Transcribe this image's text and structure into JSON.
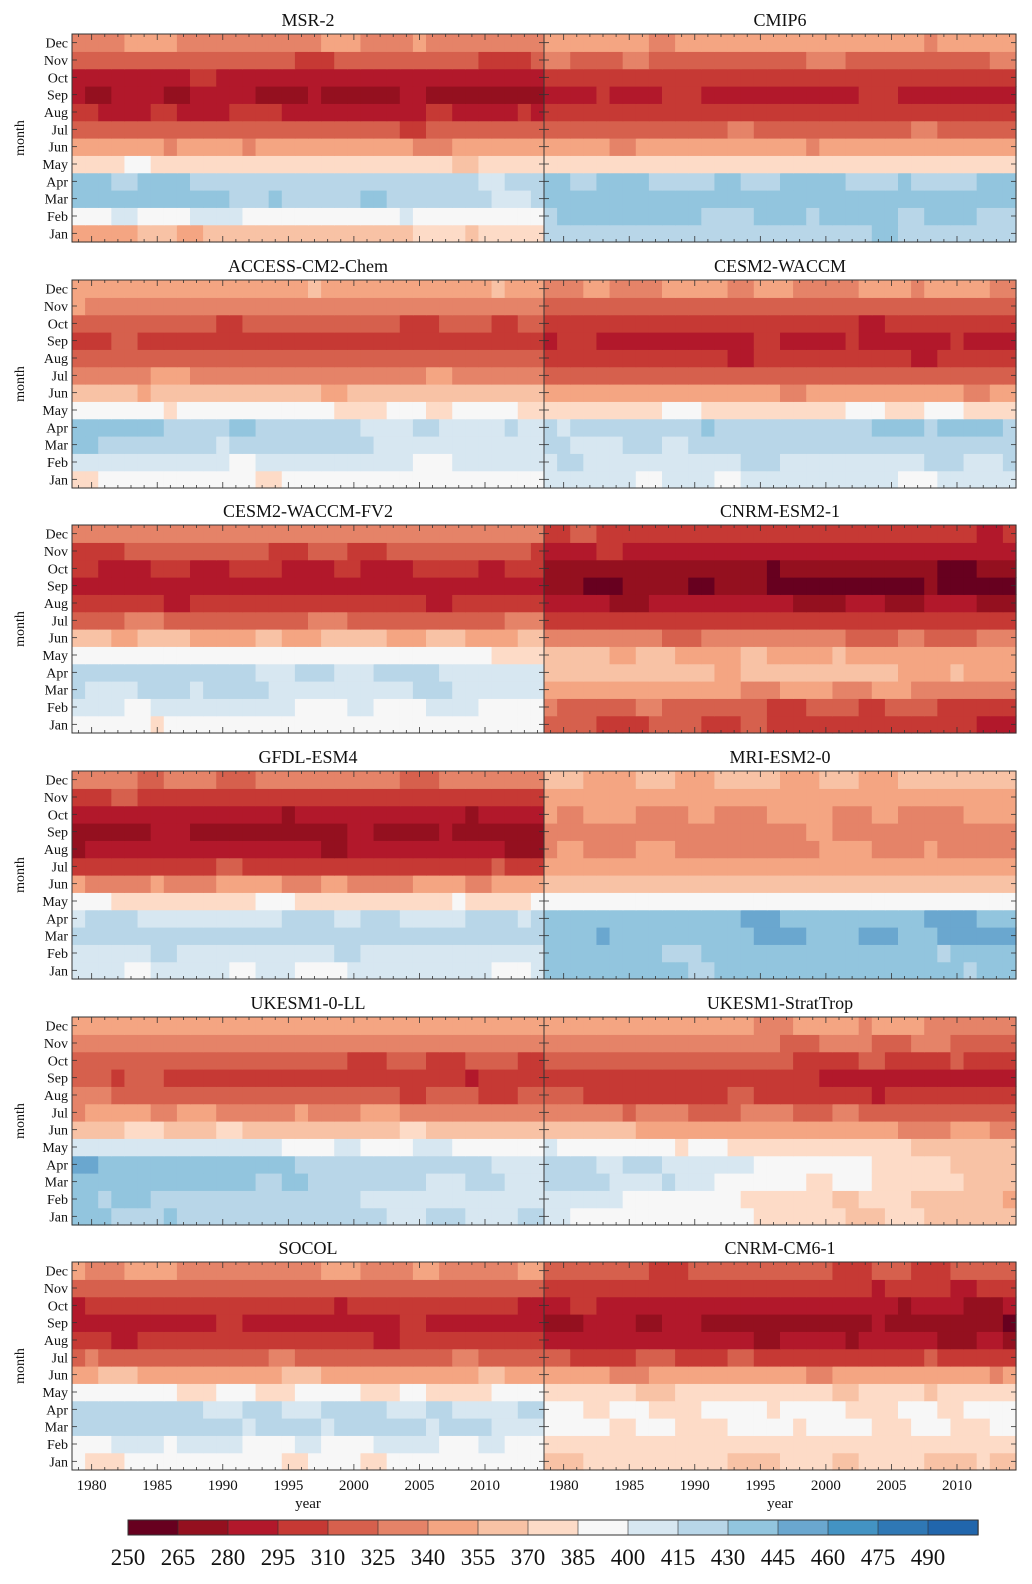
{
  "chart_data": {
    "type": "heatmap",
    "x_label": "year",
    "y_label": "month",
    "x_ticks": [
      1980,
      1985,
      1990,
      1995,
      2000,
      2005,
      2010
    ],
    "x_range": [
      1979,
      2014
    ],
    "months": [
      "Jan",
      "Feb",
      "Mar",
      "Apr",
      "May",
      "Jun",
      "Jul",
      "Aug",
      "Sep",
      "Oct",
      "Nov",
      "Dec"
    ],
    "colorbar": {
      "ticks": [
        250,
        265,
        280,
        295,
        310,
        325,
        340,
        355,
        370,
        385,
        400,
        415,
        430,
        445,
        460,
        475,
        490
      ],
      "colors": [
        "#67001f",
        "#94101f",
        "#b2182b",
        "#c63934",
        "#d6604d",
        "#e58368",
        "#f4a582",
        "#f8c2a5",
        "#fddbc7",
        "#f7f7f7",
        "#d7e7f1",
        "#b8d6e8",
        "#92c5de",
        "#6aa7cf",
        "#4393c3",
        "#2f78b5",
        "#2166ac"
      ]
    },
    "panels": [
      {
        "title": "MSR-2",
        "profile": [
          352,
          400,
          438,
          432,
          380,
          345,
          318,
          296,
          285,
          291,
          315,
          338
        ],
        "trend": [
          22,
          -8,
          -20,
          -14,
          -6,
          -2,
          -4,
          -6,
          -12,
          -4,
          -4,
          -2
        ]
      },
      {
        "title": "CMIP6",
        "profile": [
          424,
          432,
          438,
          430,
          378,
          345,
          320,
          302,
          292,
          302,
          322,
          345
        ],
        "trend": [
          0,
          0,
          0,
          0,
          0,
          0,
          0,
          0,
          0,
          0,
          0,
          0
        ]
      },
      {
        "title": "ACCESS-CM2-Chem",
        "profile": [
          386,
          405,
          428,
          436,
          392,
          360,
          336,
          318,
          306,
          318,
          336,
          352
        ],
        "trend": [
          10,
          -2,
          -22,
          -28,
          -8,
          0,
          0,
          0,
          -4,
          -6,
          -6,
          -4
        ]
      },
      {
        "title": "CESM2-WACCM",
        "profile": [
          405,
          410,
          415,
          420,
          380,
          345,
          318,
          300,
          292,
          300,
          318,
          340
        ],
        "trend": [
          -3,
          3,
          10,
          12,
          4,
          0,
          0,
          0,
          0,
          0,
          0,
          0
        ]
      },
      {
        "title": "CESM2-WACCM-FV2",
        "profile": [
          392,
          405,
          418,
          422,
          395,
          355,
          322,
          300,
          288,
          295,
          312,
          332
        ],
        "trend": [
          -2,
          -8,
          -8,
          -10,
          -8,
          0,
          0,
          0,
          0,
          0,
          0,
          0
        ]
      },
      {
        "title": "CNRM-ESM2-1",
        "profile": [
          315,
          325,
          350,
          365,
          358,
          332,
          306,
          284,
          270,
          276,
          292,
          305
        ],
        "trend": [
          -18,
          -22,
          -18,
          -12,
          -12,
          -8,
          -6,
          -6,
          -14,
          -10,
          -6,
          -6
        ]
      },
      {
        "title": "GFDL-ESM4",
        "profile": [
          402,
          410,
          420,
          412,
          382,
          340,
          305,
          284,
          276,
          286,
          304,
          328
        ],
        "trend": [
          0,
          0,
          4,
          4,
          0,
          0,
          0,
          0,
          0,
          0,
          0,
          0
        ]
      },
      {
        "title": "MRI-ESM2-0",
        "profile": [
          432,
          432,
          440,
          438,
          392,
          362,
          348,
          338,
          334,
          340,
          348,
          356
        ],
        "trend": [
          4,
          4,
          8,
          6,
          0,
          0,
          0,
          0,
          0,
          0,
          0,
          0
        ]
      },
      {
        "title": "UKESM1-0-LL",
        "profile": [
          432,
          434,
          446,
          446,
          410,
          370,
          342,
          322,
          312,
          322,
          338,
          352
        ],
        "trend": [
          -20,
          -28,
          -40,
          -34,
          -18,
          -8,
          -8,
          -10,
          -16,
          -14,
          -10,
          -8
        ]
      },
      {
        "title": "UKESM1-StratTrop",
        "profile": [
          405,
          410,
          425,
          425,
          400,
          360,
          330,
          310,
          305,
          320,
          338,
          350
        ],
        "trend": [
          -45,
          -55,
          -62,
          -58,
          -42,
          -22,
          -12,
          -12,
          -18,
          -18,
          -18,
          -14
        ]
      },
      {
        "title": "SOCOL",
        "profile": [
          388,
          402,
          422,
          418,
          388,
          352,
          320,
          300,
          290,
          300,
          318,
          338
        ],
        "trend": [
          0,
          -4,
          -6,
          -4,
          -4,
          0,
          0,
          0,
          0,
          0,
          0,
          0
        ]
      },
      {
        "title": "CNRM-CM6-1",
        "profile": [
          372,
          378,
          385,
          385,
          375,
          345,
          310,
          288,
          282,
          292,
          304,
          315
        ],
        "trend": [
          -2,
          0,
          2,
          2,
          -2,
          -2,
          -8,
          -8,
          -12,
          -10,
          -6,
          -4
        ]
      }
    ]
  }
}
